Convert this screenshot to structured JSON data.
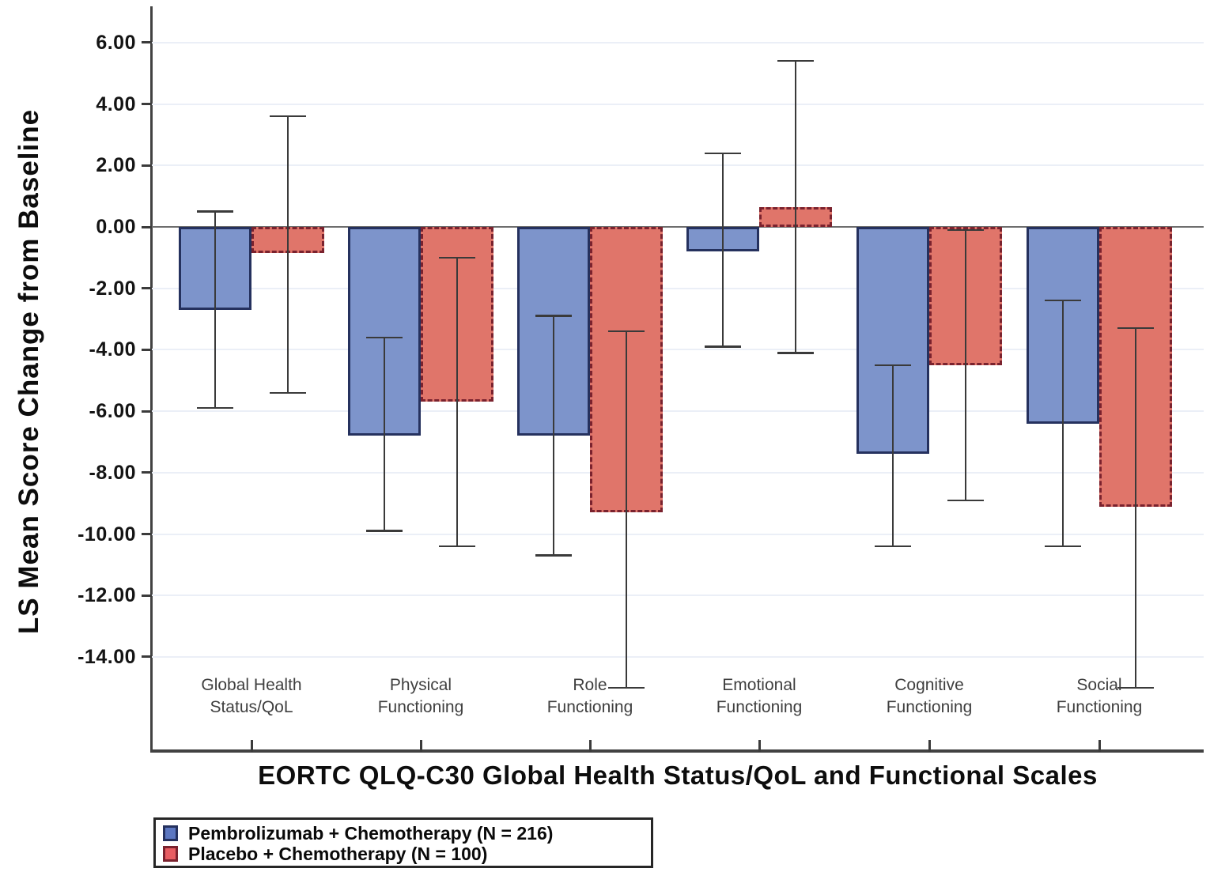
{
  "chart_data": {
    "type": "bar",
    "title": "",
    "xlabel": "EORTC QLQ-C30 Global Health Status/QoL and Functional Scales",
    "ylabel": "LS Mean Score Change from Baseline",
    "categories": [
      [
        "Global Health",
        "Status/QoL"
      ],
      [
        "Physical",
        "Functioning"
      ],
      [
        "Role",
        "Functioning"
      ],
      [
        "Emotional",
        "Functioning"
      ],
      [
        "Cognitive",
        "Functioning"
      ],
      [
        "Social",
        "Functioning"
      ]
    ],
    "y_ticks": [
      {
        "value": 6,
        "label": "6.00"
      },
      {
        "value": 4,
        "label": "4.00"
      },
      {
        "value": 2,
        "label": "2.00"
      },
      {
        "value": 0,
        "label": "0.00"
      },
      {
        "value": -2,
        "label": "-2.00"
      },
      {
        "value": -4,
        "label": "-4.00"
      },
      {
        "value": -6,
        "label": "-6.00"
      },
      {
        "value": -8,
        "label": "-8.00"
      },
      {
        "value": -10,
        "label": "-10.00"
      },
      {
        "value": -12,
        "label": "-12.00"
      },
      {
        "value": -14,
        "label": "-14.00"
      }
    ],
    "ylim": [
      7.1,
      -17.0
    ],
    "grid": true,
    "zero_line": true,
    "legend_position": "bottom-left",
    "error_bar_color": "#3A3A3A",
    "series": [
      {
        "name": "Pembrolizumab + Chemotherapy (N = 216)",
        "fill": "#7D94CB",
        "border_color": "#25315E",
        "border_style": "solid",
        "legend_swatch": "#5C77C1",
        "values": [
          -2.7,
          -6.8,
          -6.8,
          -0.8,
          -7.4,
          -6.4
        ],
        "err_high": [
          0.5,
          -3.6,
          -2.9,
          2.4,
          -4.5,
          -2.4
        ],
        "err_low": [
          -5.9,
          -9.9,
          -10.7,
          -3.9,
          -10.4,
          -10.4
        ]
      },
      {
        "name": "Placebo + Chemotherapy (N = 100)",
        "fill": "#E0756A",
        "border_color": "#7A222E",
        "border_style": "dashed",
        "legend_swatch": "#E85D62",
        "values": [
          -0.85,
          -5.7,
          -9.3,
          0.65,
          -4.5,
          -9.1
        ],
        "err_high": [
          3.6,
          -1.0,
          -3.4,
          5.4,
          -0.1,
          -3.3
        ],
        "err_low": [
          -5.4,
          -10.4,
          -15.0,
          -4.1,
          -8.9,
          -15.0
        ]
      }
    ]
  }
}
